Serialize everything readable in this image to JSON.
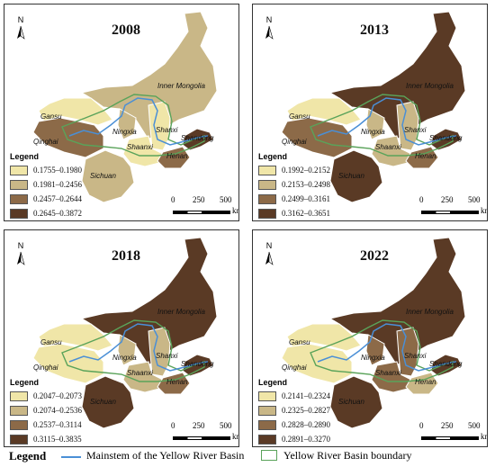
{
  "figure": {
    "colors": {
      "class1": "#f0e6a8",
      "class2": "#c9b787",
      "class3": "#8c6a48",
      "class4": "#5a3a25",
      "border": "#ffffff",
      "river": "#4a8fd6",
      "basin": "#5aa35a"
    },
    "north_label": "N",
    "legend_title": "Legend",
    "scale": {
      "t0": "0",
      "t1": "250",
      "t2": "500",
      "unit": "km"
    },
    "province_names": {
      "inner_mongolia": "Inner Mongolia",
      "gansu": "Gansu",
      "ningxia": "Ningxia",
      "shanxi": "Shanxi",
      "qinghai": "Qinghai",
      "shaanxi": "Shaanxi",
      "shandong": "Shandong",
      "henan": "Henan",
      "sichuan": "Sichuan"
    },
    "panels": [
      {
        "year": "2008",
        "legend": [
          "0.1755–0.1980",
          "0.1981–0.2456",
          "0.2457–0.2644",
          "0.2645–0.3872"
        ],
        "classes": {
          "inner_mongolia": 2,
          "gansu": 1,
          "ningxia": 2,
          "shanxi": 1,
          "qinghai": 3,
          "shaanxi": 1,
          "shandong": 4,
          "henan": 3,
          "sichuan": 2
        }
      },
      {
        "year": "2013",
        "legend": [
          "0.1992–0.2152",
          "0.2153–0.2498",
          "0.2499–0.3161",
          "0.3162–0.3651"
        ],
        "classes": {
          "inner_mongolia": 4,
          "gansu": 1,
          "ningxia": 2,
          "shanxi": 2,
          "qinghai": 3,
          "shaanxi": 2,
          "shandong": 4,
          "henan": 3,
          "sichuan": 4
        }
      },
      {
        "year": "2018",
        "legend": [
          "0.2047–0.2073",
          "0.2074–0.2536",
          "0.2537–0.3114",
          "0.3115–0.3835"
        ],
        "classes": {
          "inner_mongolia": 4,
          "gansu": 1,
          "ningxia": 2,
          "shanxi": 2,
          "qinghai": 1,
          "shaanxi": 2,
          "shandong": 4,
          "henan": 3,
          "sichuan": 4
        }
      },
      {
        "year": "2022",
        "legend": [
          "0.2141–0.2324",
          "0.2325–0.2827",
          "0.2828–0.2890",
          "0.2891–0.3270"
        ],
        "classes": {
          "inner_mongolia": 4,
          "gansu": 1,
          "ningxia": 3,
          "shanxi": 3,
          "qinghai": 1,
          "shaanxi": 3,
          "shandong": 4,
          "henan": 2,
          "sichuan": 4
        }
      }
    ],
    "bottom_legend": {
      "title": "Legend",
      "river": "Mainstem of the Yellow River Basin",
      "basin": "Yellow River Basin boundary"
    }
  }
}
